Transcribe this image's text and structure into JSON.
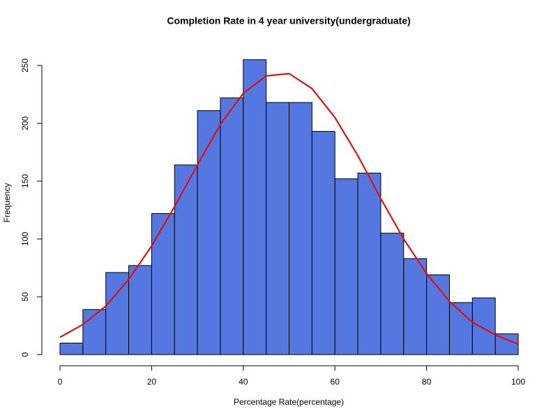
{
  "chart_data": {
    "type": "histogram",
    "title": "Completion Rate in 4 year university(undergraduate)",
    "x_label": "Percentage Rate(percentage)",
    "y_label": "Frequency",
    "bins": [
      0,
      5,
      10,
      15,
      20,
      25,
      30,
      35,
      40,
      45,
      50,
      55,
      60,
      65,
      70,
      75,
      80,
      85,
      90,
      95,
      100
    ],
    "values": [
      10,
      39,
      71,
      77,
      122,
      164,
      211,
      222,
      255,
      218,
      218,
      193,
      152,
      157,
      105,
      83,
      69,
      45,
      49,
      18
    ],
    "color": "#5577e0",
    "overlay": {
      "x": [
        0,
        5,
        10,
        15,
        20,
        25,
        30,
        35,
        40,
        45,
        50,
        55,
        60,
        65,
        70,
        75,
        80,
        85,
        90,
        95,
        100
      ],
      "values": [
        15,
        26,
        42,
        65,
        94,
        128,
        164,
        199,
        226,
        241,
        243,
        230,
        205,
        172,
        135,
        100,
        70,
        46,
        28,
        17,
        9
      ],
      "color": "#e01010"
    },
    "xlim": [
      0,
      100
    ],
    "ylim": [
      0,
      265
    ],
    "xticks": [
      0,
      20,
      40,
      60,
      80,
      100
    ],
    "yticks": [
      0,
      50,
      100,
      150,
      200,
      250
    ]
  }
}
